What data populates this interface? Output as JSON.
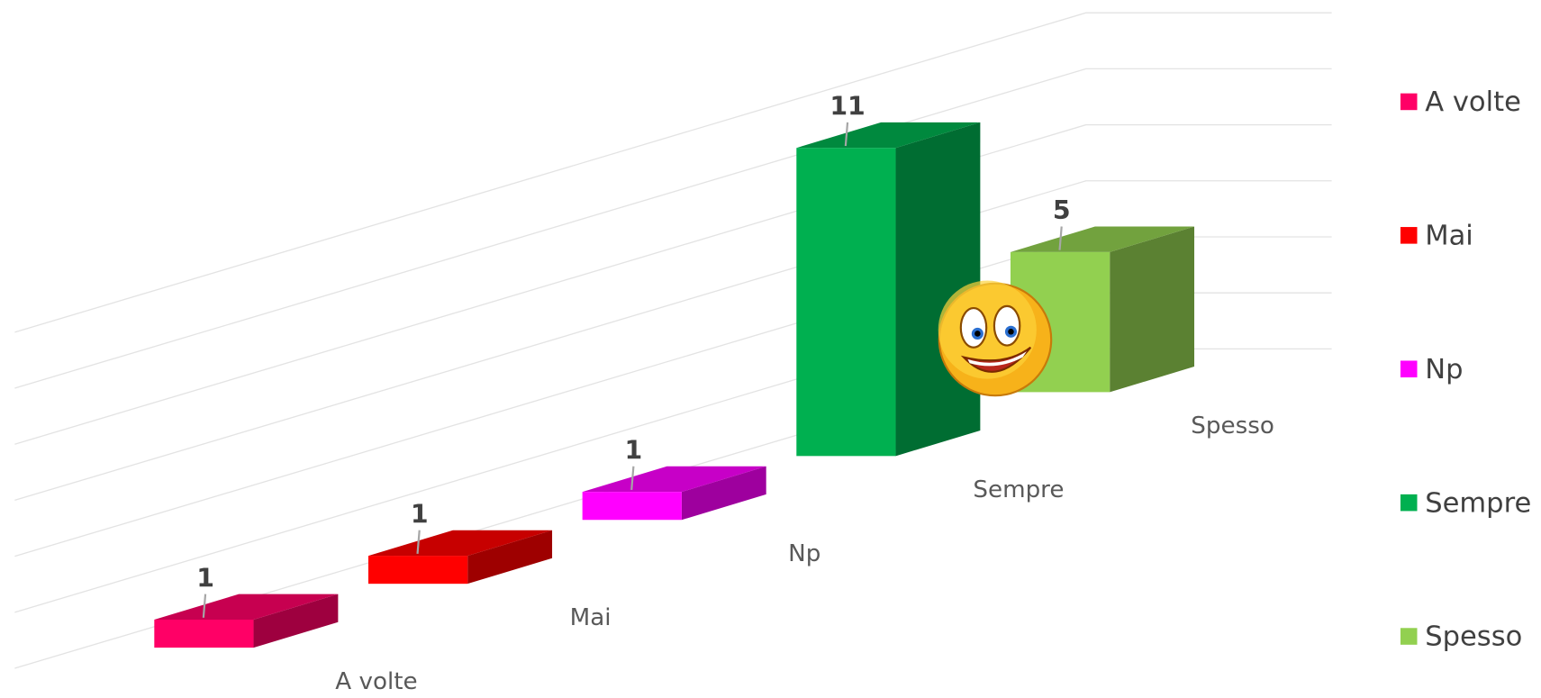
{
  "chart_data": {
    "type": "bar3d",
    "categories": [
      "A volte",
      "Mai",
      "Np",
      "Sempre",
      "Spesso"
    ],
    "values": [
      1,
      1,
      1,
      11,
      5
    ],
    "colors": [
      "#ff0066",
      "#ff0000",
      "#ff00ff",
      "#00b050",
      "#92d050"
    ],
    "ylim": [
      0,
      12
    ],
    "yticks": [
      0,
      2,
      4,
      6,
      8,
      10,
      12
    ],
    "grid": true,
    "legend": "right"
  }
}
